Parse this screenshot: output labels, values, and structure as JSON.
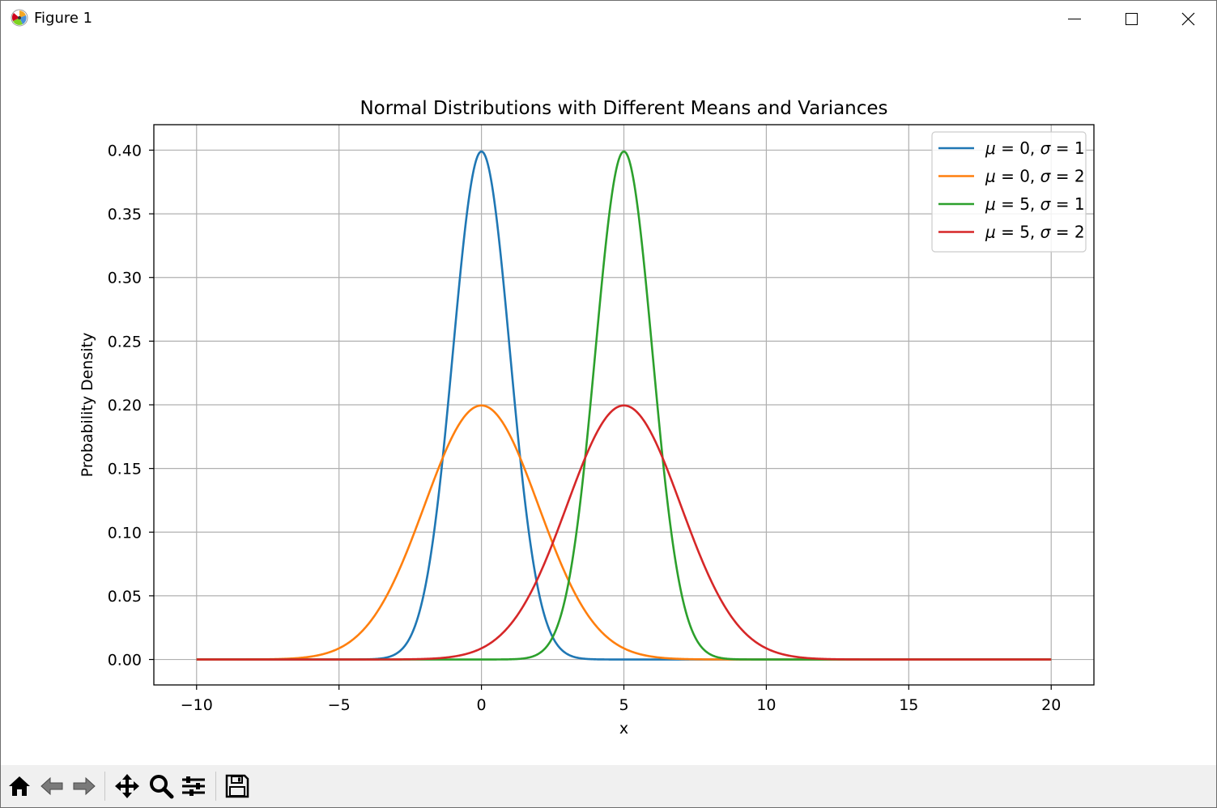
{
  "window": {
    "title": "Figure 1",
    "controls": [
      "minimize-icon",
      "maximize-icon",
      "close-icon"
    ]
  },
  "toolbar": {
    "buttons": [
      "home-icon",
      "back-icon",
      "forward-icon",
      "pan-icon",
      "zoom-icon",
      "configure-subplots-icon",
      "save-icon"
    ]
  },
  "chart_data": {
    "type": "line",
    "title": "Normal Distributions with Different Means and Variances",
    "xlabel": "x",
    "ylabel": "Probability Density",
    "xlim": [
      -11.5,
      21.5
    ],
    "ylim": [
      -0.02,
      0.42
    ],
    "xticks": [
      -10,
      -5,
      0,
      5,
      10,
      15,
      20
    ],
    "xtick_labels": [
      "−10",
      "−5",
      "0",
      "5",
      "10",
      "15",
      "20"
    ],
    "yticks": [
      0.0,
      0.05,
      0.1,
      0.15,
      0.2,
      0.25,
      0.3,
      0.35,
      0.4
    ],
    "ytick_labels": [
      "0.00",
      "0.05",
      "0.10",
      "0.15",
      "0.20",
      "0.25",
      "0.30",
      "0.35",
      "0.40"
    ],
    "grid": true,
    "legend_position": "top-right",
    "x_range": [
      -10,
      20
    ],
    "series": [
      {
        "name": "μ = 0, σ = 1",
        "mu_text": "0",
        "sigma_text": "1",
        "mu": 0,
        "sigma": 1,
        "color": "#1f77b4"
      },
      {
        "name": "μ = 0, σ = 2",
        "mu_text": "0",
        "sigma_text": "2",
        "mu": 0,
        "sigma": 2,
        "color": "#ff7f0e"
      },
      {
        "name": "μ = 5, σ = 1",
        "mu_text": "5",
        "sigma_text": "1",
        "mu": 5,
        "sigma": 1,
        "color": "#2ca02c"
      },
      {
        "name": "μ = 5, σ = 2",
        "mu_text": "5",
        "sigma_text": "2",
        "mu": 5,
        "sigma": 2,
        "color": "#d62728"
      }
    ]
  }
}
